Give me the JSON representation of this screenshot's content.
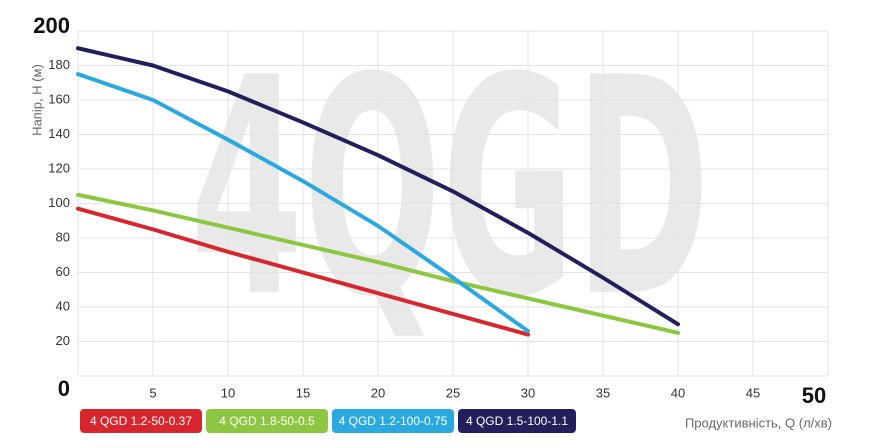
{
  "chart_data": {
    "type": "line",
    "watermark": "4QGD",
    "y_label": "Напір, H (м)",
    "x_label": "Продуктивність, Q (л/хв)",
    "xlim": [
      0,
      50
    ],
    "xticks": [
      0,
      5,
      10,
      15,
      20,
      25,
      30,
      35,
      40,
      45,
      50
    ],
    "ylim": [
      0,
      200
    ],
    "yticks": [
      0,
      20,
      40,
      60,
      80,
      100,
      120,
      140,
      160,
      180,
      200
    ],
    "grid": true,
    "series": [
      {
        "name": "4 QGD 1.2-50-0.37",
        "color": "#d8262e",
        "x": [
          0,
          5,
          10,
          15,
          20,
          25,
          30
        ],
        "values": [
          97,
          85,
          72,
          60,
          48,
          36,
          24
        ]
      },
      {
        "name": "4 QGD 1.8-50-0.5",
        "color": "#8dc641",
        "x": [
          0,
          5,
          10,
          15,
          20,
          25,
          30,
          35,
          40
        ],
        "values": [
          105,
          96,
          86,
          76,
          66,
          55,
          45,
          35,
          25
        ]
      },
      {
        "name": "4 QGD 1.2-100-0.75",
        "color": "#2aa9e0",
        "x": [
          0,
          5,
          10,
          15,
          20,
          25,
          30
        ],
        "values": [
          175,
          160,
          137,
          113,
          87,
          57,
          26
        ]
      },
      {
        "name": "4 QGD 1.5-100-1.1",
        "color": "#22205c",
        "x": [
          0,
          5,
          10,
          15,
          20,
          25,
          30,
          35,
          40
        ],
        "values": [
          190,
          180,
          165,
          147,
          128,
          107,
          83,
          57,
          30
        ]
      }
    ]
  }
}
